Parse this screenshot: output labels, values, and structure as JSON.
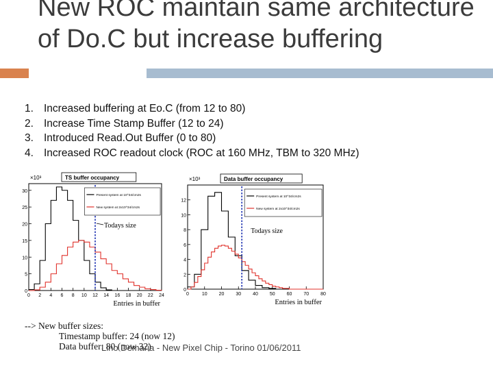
{
  "slide": {
    "title": "New ROC maintain same architecture of Do.C but increase buffering",
    "bullets": [
      {
        "num": "1.",
        "text": "Increased buffering at Eo.C  (from 12 to 80)"
      },
      {
        "num": "2.",
        "text": "Increase Time Stamp Buffer (12 to 24)"
      },
      {
        "num": "3.",
        "text": "Introduced Read.Out Buffer (0 to 80)"
      },
      {
        "num": "4.",
        "text": "Increased ROC readout clock (ROC at 160 MHz, TBM to 320 MHz)"
      }
    ],
    "new_sizes": {
      "heading": "--> New buffer sizes:",
      "timestamp": "Timestamp buffer: 24 (now 12)",
      "data": "Data buffer: 80 (now 32)"
    },
    "footer": "Lino Demaria - New Pixel Chip -  Torino 01/06/2011"
  },
  "chart_data": [
    {
      "type": "histogram",
      "title": "TS buffer occupancy",
      "xlabel": "Entries in buffer",
      "ylabel": "",
      "y_multiplier": "×10³",
      "xlim": [
        0,
        24
      ],
      "ylim": [
        0,
        32
      ],
      "x_ticks": [
        "0",
        "2",
        "4",
        "6",
        "8",
        "10",
        "12",
        "14",
        "16",
        "18",
        "20",
        "22",
        "24"
      ],
      "y_ticks": [
        "0",
        "5",
        "10",
        "15",
        "20",
        "25",
        "30"
      ],
      "legend": [
        "Present system at 10^34/cm2s",
        "New system at 2x10^34/cm2s"
      ],
      "annotation": "Todays size",
      "todays_size_x": 12,
      "series": [
        {
          "name": "Present system",
          "color": "#000000",
          "values": [
            0.3,
            2,
            9,
            20,
            27,
            31,
            30,
            27,
            21,
            15,
            9,
            5,
            2.5,
            0.8,
            0.2,
            0,
            0,
            0,
            0,
            0,
            0,
            0,
            0,
            0
          ]
        },
        {
          "name": "New system",
          "color": "#e0302a",
          "values": [
            0,
            0.2,
            1,
            2.5,
            5,
            8,
            10.5,
            13,
            14.5,
            15,
            14.5,
            13,
            11.5,
            9.5,
            8,
            6,
            5,
            3.5,
            2.5,
            1.5,
            1,
            0.5,
            0.3,
            0.1
          ]
        }
      ]
    },
    {
      "type": "histogram",
      "title": "Data buffer occupancy",
      "xlabel": "Entries in buffer",
      "ylabel": "",
      "y_multiplier": "×10³",
      "xlim": [
        0,
        80
      ],
      "ylim": [
        0,
        14
      ],
      "x_ticks": [
        "0",
        "10",
        "20",
        "30",
        "40",
        "50",
        "60",
        "70",
        "80"
      ],
      "y_ticks": [
        "0",
        "2",
        "4",
        "6",
        "8",
        "10",
        "12"
      ],
      "legend": [
        "Present system at 10^34/cm2s",
        "New system at 2x10^34/cm2s"
      ],
      "annotation": "Todays size",
      "todays_size_x": 32,
      "series": [
        {
          "name": "Present system",
          "color": "#000000",
          "values": [
            0.3,
            2,
            8,
            12.5,
            13,
            10.5,
            7,
            4.5,
            2.5,
            1.2,
            0.5,
            0.2,
            0.1,
            0,
            0,
            0,
            0,
            0,
            0,
            0
          ]
        },
        {
          "name": "New system",
          "color": "#e0302a",
          "values": [
            0,
            0.3,
            0.9,
            1.7,
            2.6,
            3.5,
            4.3,
            5,
            5.5,
            5.8,
            5.9,
            5.8,
            5.5,
            5.1,
            4.7,
            4.2,
            3.7,
            3.2,
            2.7,
            2.2,
            1.8,
            1.4,
            1.1,
            0.8,
            0.6,
            0.4,
            0.3,
            0.2,
            0.1,
            0.1,
            0,
            0,
            0,
            0,
            0,
            0,
            0,
            0,
            0,
            0
          ]
        }
      ]
    }
  ]
}
